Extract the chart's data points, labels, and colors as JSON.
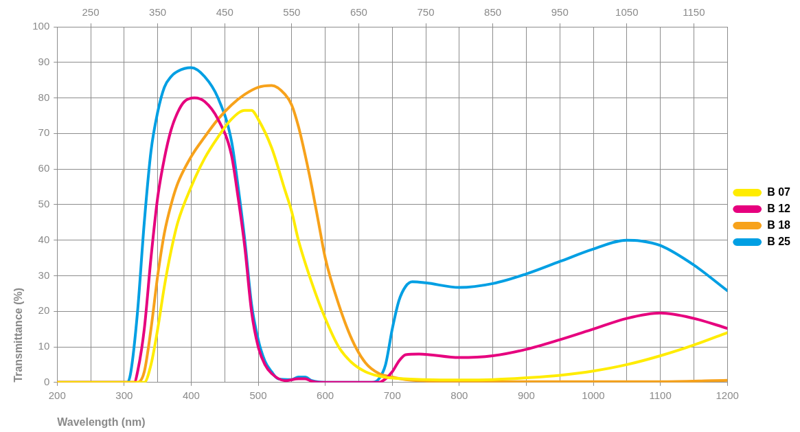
{
  "chart_data": {
    "type": "line",
    "xlabel": "Wavelength (nm)",
    "ylabel": "Transmittance (%)",
    "xlim": [
      200,
      1200
    ],
    "xticks": [
      200,
      300,
      400,
      500,
      600,
      700,
      800,
      900,
      1000,
      1100,
      1200
    ],
    "x2lim": [
      200,
      1200
    ],
    "x2ticks": [
      250,
      350,
      450,
      550,
      650,
      750,
      850,
      950,
      1050,
      1150
    ],
    "ylim": [
      0,
      100
    ],
    "yticks": [
      0,
      10,
      20,
      30,
      40,
      50,
      60,
      70,
      80,
      90,
      100
    ],
    "grid": true,
    "legend": "right",
    "series": [
      {
        "name": "B 07",
        "color": "#ffec00",
        "x": [
          200,
          330,
          340,
          350,
          360,
          370,
          380,
          400,
          420,
          440,
          460,
          480,
          490,
          500,
          520,
          540,
          550,
          560,
          580,
          600,
          620,
          640,
          660,
          680,
          700,
          750,
          800,
          850,
          900,
          950,
          1000,
          1050,
          1100,
          1150,
          1200
        ],
        "values": [
          0,
          0,
          5,
          15,
          27,
          37,
          45,
          55,
          63,
          69,
          74,
          76.5,
          76.5,
          74,
          66,
          54,
          48,
          40,
          28,
          18,
          10,
          5.5,
          3,
          1.8,
          1.2,
          0.8,
          0.7,
          0.8,
          1.3,
          2,
          3.2,
          5,
          7.5,
          10.5,
          14
        ]
      },
      {
        "name": "B 12",
        "color": "#e6007e",
        "x": [
          200,
          315,
          320,
          330,
          340,
          350,
          360,
          370,
          380,
          390,
          405,
          420,
          440,
          460,
          470,
          480,
          490,
          500,
          510,
          520,
          540,
          560,
          570,
          580,
          590,
          680,
          690,
          700,
          710,
          720,
          740,
          800,
          850,
          900,
          950,
          1000,
          1050,
          1100,
          1150,
          1200
        ],
        "values": [
          0,
          0,
          3,
          15,
          35,
          52,
          63,
          71,
          76,
          79,
          80,
          79,
          74,
          64,
          52,
          38,
          20,
          10,
          5,
          2.5,
          0.5,
          1,
          1,
          0.3,
          0,
          0,
          1,
          3,
          6,
          7.8,
          8,
          7,
          7.5,
          9.3,
          12,
          15,
          18,
          19.5,
          18,
          15.2
        ]
      },
      {
        "name": "B 18",
        "color": "#f7a21b",
        "x": [
          200,
          320,
          330,
          340,
          350,
          360,
          370,
          380,
          400,
          420,
          440,
          460,
          480,
          500,
          520,
          540,
          550,
          560,
          570,
          580,
          590,
          600,
          620,
          640,
          660,
          680,
          700,
          720,
          750,
          800,
          1100,
          1200
        ],
        "values": [
          0,
          0,
          3,
          15,
          30,
          42,
          50,
          56,
          63.5,
          69,
          74,
          78,
          81,
          83,
          83.5,
          81,
          78,
          72,
          64,
          55,
          45,
          35,
          22,
          12,
          5.5,
          2.5,
          1.5,
          0.8,
          0.4,
          0.2,
          0.2,
          0.6
        ]
      },
      {
        "name": "B 25",
        "color": "#009fe3",
        "x": [
          200,
          305,
          310,
          320,
          330,
          340,
          350,
          360,
          370,
          380,
          400,
          420,
          440,
          460,
          470,
          480,
          490,
          500,
          510,
          520,
          530,
          550,
          560,
          570,
          580,
          600,
          670,
          680,
          690,
          700,
          710,
          720,
          730,
          750,
          800,
          850,
          900,
          950,
          1000,
          1050,
          1070,
          1100,
          1150,
          1200
        ],
        "values": [
          0,
          0,
          3,
          20,
          45,
          65,
          76,
          83,
          86,
          87.5,
          88.5,
          86,
          80,
          68,
          55,
          40,
          22,
          12,
          6,
          3,
          1,
          0.8,
          1.5,
          1.5,
          0.5,
          0,
          0,
          1,
          5,
          15,
          23,
          27,
          28.3,
          28,
          26.7,
          27.8,
          30.5,
          34,
          37.5,
          40,
          39.8,
          38.5,
          33,
          25.8
        ]
      }
    ]
  }
}
